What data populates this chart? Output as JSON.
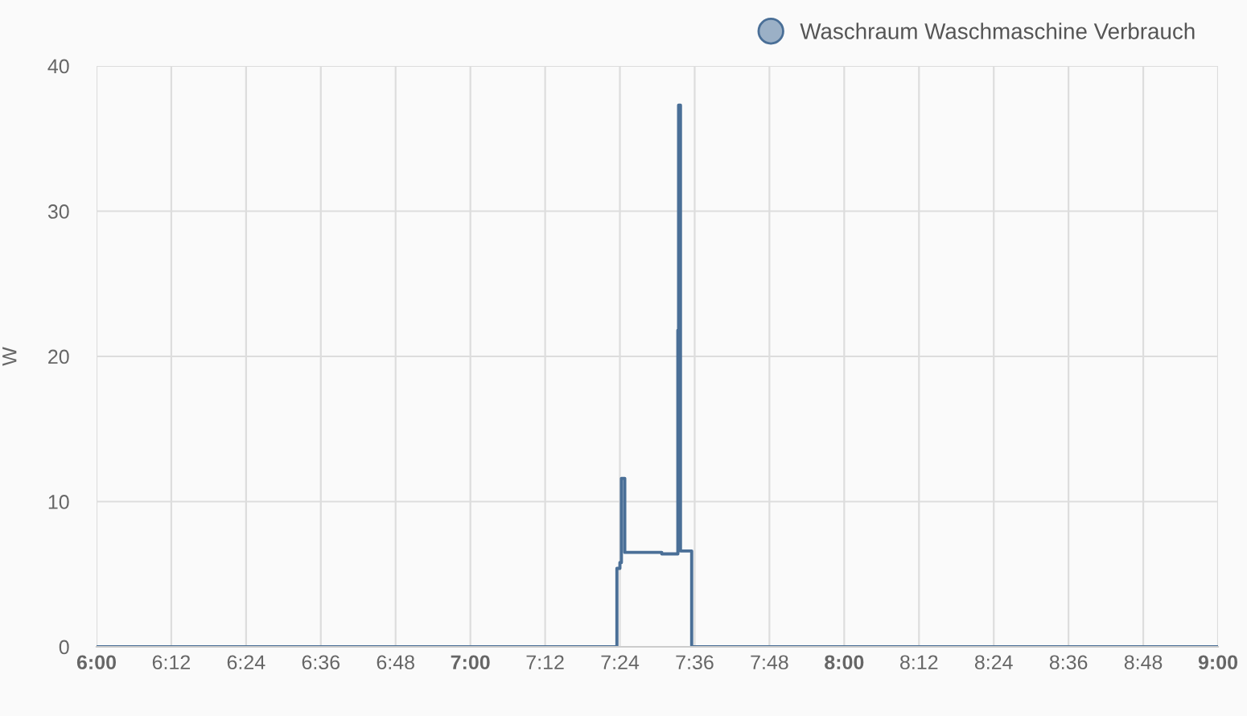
{
  "chart_data": {
    "type": "step",
    "ylabel": "W",
    "x": [
      6.0,
      7.392,
      7.4,
      7.404,
      7.413,
      7.512,
      7.555,
      7.557,
      7.562,
      7.592,
      9.0
    ],
    "series": [
      {
        "name": "Waschraum Waschmaschine Verbrauch",
        "color": "#4a6f97",
        "values": [
          0,
          5.4,
          5.8,
          11.6,
          6.5,
          6.4,
          21.8,
          37.3,
          6.6,
          0,
          0
        ]
      }
    ],
    "xlim": [
      6.0,
      9.0
    ],
    "xticks": [
      {
        "value": 6.0,
        "label": "6:00"
      },
      {
        "value": 6.2,
        "label": "6:12"
      },
      {
        "value": 6.4,
        "label": "6:24"
      },
      {
        "value": 6.6,
        "label": "6:36"
      },
      {
        "value": 6.8,
        "label": "6:48"
      },
      {
        "value": 7.0,
        "label": "7:00"
      },
      {
        "value": 7.2,
        "label": "7:12"
      },
      {
        "value": 7.4,
        "label": "7:24"
      },
      {
        "value": 7.6,
        "label": "7:36"
      },
      {
        "value": 7.8,
        "label": "7:48"
      },
      {
        "value": 8.0,
        "label": "8:00"
      },
      {
        "value": 8.2,
        "label": "8:12"
      },
      {
        "value": 8.4,
        "label": "8:24"
      },
      {
        "value": 8.6,
        "label": "8:36"
      },
      {
        "value": 8.8,
        "label": "8:48"
      },
      {
        "value": 9.0,
        "label": "9:00"
      }
    ],
    "ylim": [
      0,
      40
    ],
    "yticks": [
      0,
      10,
      20,
      30,
      40
    ],
    "grid": true,
    "legend": "top right"
  }
}
